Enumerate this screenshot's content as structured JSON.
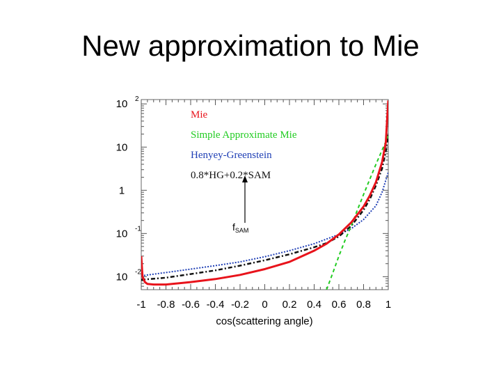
{
  "slide": {
    "title": "New approximation to Mie"
  },
  "chart_data": {
    "type": "line",
    "title": "",
    "xlabel": "cos(scattering angle)",
    "ylabel": "",
    "xlim": [
      -1,
      1
    ],
    "ylim_log10": [
      -2.3,
      2.1
    ],
    "y_scale": "log",
    "x_ticks": [
      "-1",
      "-0.8",
      "-0.6",
      "-0.4",
      "-0.2",
      "0",
      "0.2",
      "0.4",
      "0.6",
      "0.8",
      "1"
    ],
    "y_ticks": [
      {
        "base": "10",
        "exp": "2"
      },
      {
        "base": "10",
        "exp": ""
      },
      {
        "base": "1",
        "exp": ""
      },
      {
        "base": "10",
        "exp": "-1"
      },
      {
        "base": "10",
        "exp": "-2"
      }
    ],
    "grid": false,
    "legend_position": "top-left",
    "legend": [
      {
        "label": "Mie",
        "color": "#e8131b"
      },
      {
        "label": "Simple Approximate Mie",
        "color": "#22cc22"
      },
      {
        "label": "Henyey-Greenstein",
        "color": "#1f3fb5"
      },
      {
        "label": "0.8*HG+0.2*SAM",
        "color": "#111111"
      }
    ],
    "annotation": {
      "text": "f",
      "subscript": "SAM"
    },
    "series": [
      {
        "name": "Mie",
        "color": "#e8131b",
        "style": "solid",
        "x": [
          -1,
          -0.99,
          -0.97,
          -0.95,
          -0.9,
          -0.8,
          -0.6,
          -0.4,
          -0.2,
          0,
          0.2,
          0.4,
          0.5,
          0.6,
          0.7,
          0.8,
          0.85,
          0.9,
          0.95,
          0.98,
          0.99,
          1.0
        ],
        "y": [
          0.03,
          0.01,
          0.0075,
          0.0068,
          0.0066,
          0.0066,
          0.0075,
          0.0088,
          0.011,
          0.015,
          0.022,
          0.04,
          0.058,
          0.095,
          0.18,
          0.42,
          0.75,
          1.55,
          4.5,
          13,
          40,
          120
        ]
      },
      {
        "name": "Simple Approximate Mie",
        "color": "#22cc22",
        "style": "dashed",
        "x": [
          0.5,
          0.55,
          0.6,
          0.65,
          0.7,
          0.75,
          0.8,
          0.85,
          0.9,
          0.95,
          1.0
        ],
        "y": [
          0.005,
          0.012,
          0.03,
          0.07,
          0.15,
          0.35,
          0.8,
          1.8,
          4.0,
          8.5,
          18
        ]
      },
      {
        "name": "Henyey-Greenstein",
        "color": "#1f3fb5",
        "style": "dotted",
        "x": [
          -1,
          -0.8,
          -0.6,
          -0.4,
          -0.2,
          0,
          0.2,
          0.4,
          0.6,
          0.7,
          0.8,
          0.9,
          0.95,
          1.0
        ],
        "y": [
          0.0105,
          0.0125,
          0.015,
          0.018,
          0.022,
          0.029,
          0.04,
          0.058,
          0.095,
          0.13,
          0.21,
          0.44,
          0.9,
          2.6
        ]
      },
      {
        "name": "0.8*HG+0.2*SAM",
        "color": "#111111",
        "style": "dashdot",
        "x": [
          -1,
          -0.8,
          -0.6,
          -0.4,
          -0.2,
          0,
          0.2,
          0.4,
          0.5,
          0.6,
          0.7,
          0.8,
          0.85,
          0.9,
          0.95,
          0.98,
          1.0
        ],
        "y": [
          0.0085,
          0.0095,
          0.0115,
          0.014,
          0.018,
          0.024,
          0.033,
          0.048,
          0.06,
          0.085,
          0.15,
          0.35,
          0.62,
          1.3,
          3.2,
          8,
          20
        ]
      }
    ]
  }
}
